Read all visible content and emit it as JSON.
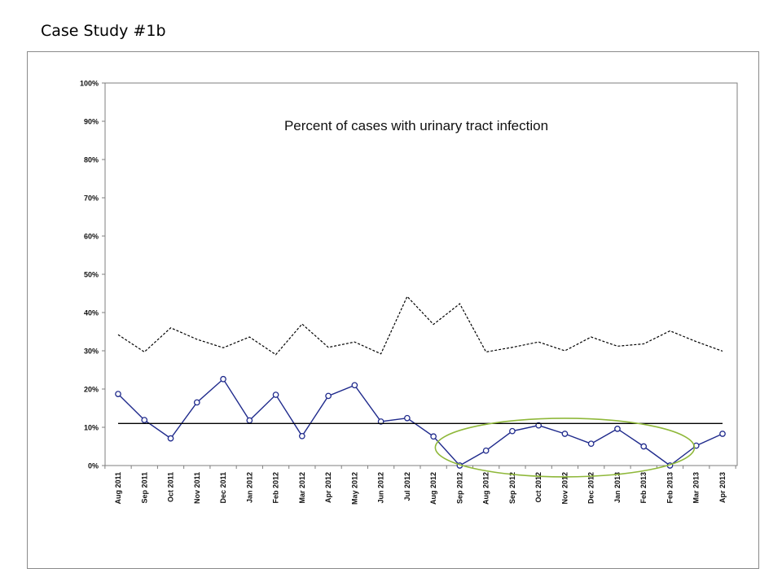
{
  "slide": {
    "title": "Case Study #1b"
  },
  "chart_data": {
    "type": "line",
    "title": "Percent of cases with urinary tract infection",
    "xlabel": "",
    "ylabel": "",
    "ylim": [
      0,
      100
    ],
    "y_ticks": [
      "0%",
      "10%",
      "20%",
      "30%",
      "40%",
      "50%",
      "60%",
      "70%",
      "80%",
      "90%",
      "100%"
    ],
    "categories": [
      "Aug 2011",
      "Sep 2011",
      "Oct 2011",
      "Nov 2011",
      "Dec 2011",
      "Jan 2012",
      "Feb 2012",
      "Mar 2012",
      "Apr 2012",
      "May 2012",
      "Jun 2012",
      "Jul 2012",
      "Aug 2012",
      "Sep 2012",
      "Aug 2012",
      "Sep 2012",
      "Oct 2012",
      "Nov 2012",
      "Dec 2012",
      "Jan 2013",
      "Feb 2013",
      "Feb 2013",
      "Mar 2013",
      "Apr 2013"
    ],
    "series": [
      {
        "role": "data",
        "color": "#1f2a8c",
        "marker": "circle",
        "values": [
          18.7,
          11.9,
          7.1,
          16.5,
          22.6,
          11.8,
          18.5,
          7.7,
          18.2,
          21.0,
          11.5,
          12.4,
          7.6,
          0.0,
          3.9,
          9.0,
          10.5,
          8.3,
          5.7,
          9.6,
          5.0,
          0.0,
          5.2,
          8.3
        ]
      },
      {
        "role": "mean",
        "color": "#000000",
        "value": 11.0
      },
      {
        "role": "upper-limit",
        "color": "#000000",
        "dashed": true,
        "values": [
          34.2,
          29.7,
          36.0,
          33.0,
          30.8,
          33.6,
          29.0,
          37.0,
          30.9,
          32.3,
          29.2,
          44.2,
          36.9,
          42.3,
          29.7,
          30.9,
          32.3,
          30.0,
          33.6,
          31.2,
          31.8,
          35.2,
          32.4,
          29.9
        ]
      }
    ],
    "grid": false,
    "legend": "none",
    "annotations": [
      {
        "shape": "ellipse",
        "color": "#8fb83a",
        "from_category_index": 13,
        "to_category_index": 21
      }
    ]
  }
}
